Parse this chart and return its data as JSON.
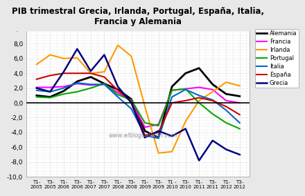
{
  "title": "PIB trimestral Grecia, Irlanda, Portugal, España, Italia,\nFrancia y Alemania",
  "watermark": "www.elblogsalmon.com",
  "ylim": [
    -10.0,
    10.0
  ],
  "yticks": [
    -10,
    -8,
    -6,
    -4,
    -2,
    0,
    2,
    4,
    6,
    8,
    10
  ],
  "x_labels": [
    "T1-\n2005",
    "T3-\n2005",
    "T1-\n2006",
    "T3-\n2006",
    "T1-\n2007",
    "T3-\n2007",
    "T1-\n2008",
    "T3-\n2008",
    "T1-\n2009",
    "T3-\n2009",
    "T1 -\n2010",
    "T3-\n2010",
    "T1-\n2011",
    "T3-\n2011",
    "T1-\n2012",
    "T3-\n2012"
  ],
  "series": {
    "Alemania": {
      "color": "#000000",
      "linewidth": 2.0,
      "data": [
        1.0,
        0.8,
        1.6,
        2.9,
        3.5,
        2.6,
        1.8,
        0.5,
        -3.8,
        -4.7,
        2.2,
        4.0,
        4.7,
        2.5,
        1.2,
        0.9
      ]
    },
    "Francia": {
      "color": "#FF00FF",
      "linewidth": 1.5,
      "data": [
        2.1,
        2.1,
        2.2,
        2.6,
        2.4,
        2.5,
        1.4,
        0.2,
        -3.3,
        -2.9,
        1.7,
        1.9,
        2.1,
        1.8,
        0.3,
        0.0
      ]
    },
    "Irlanda": {
      "color": "#FF9900",
      "linewidth": 1.5,
      "data": [
        5.2,
        6.5,
        6.0,
        6.1,
        4.0,
        4.2,
        7.8,
        6.3,
        -0.5,
        -6.8,
        -6.6,
        -2.5,
        0.3,
        1.5,
        2.8,
        2.3
      ]
    },
    "Portugal": {
      "color": "#00AA00",
      "linewidth": 1.5,
      "data": [
        0.8,
        0.7,
        1.2,
        1.5,
        2.0,
        2.6,
        1.1,
        0.4,
        -2.7,
        -3.1,
        1.7,
        1.9,
        0.0,
        -1.5,
        -2.7,
        -3.5
      ]
    },
    "Italia": {
      "color": "#0066CC",
      "linewidth": 1.5,
      "data": [
        1.7,
        1.5,
        2.0,
        2.7,
        2.5,
        2.5,
        0.8,
        -0.8,
        -4.4,
        -4.8,
        0.8,
        1.8,
        1.0,
        0.4,
        -1.0,
        -2.7
      ]
    },
    "España": {
      "color": "#CC0000",
      "linewidth": 1.5,
      "data": [
        3.2,
        3.7,
        4.0,
        4.0,
        4.0,
        3.5,
        1.7,
        0.2,
        -4.4,
        -4.0,
        0.0,
        0.3,
        0.7,
        0.3,
        -0.5,
        -1.6
      ]
    },
    "Grecia": {
      "color": "#000080",
      "linewidth": 1.8,
      "data": [
        2.0,
        1.5,
        4.2,
        7.3,
        4.3,
        6.5,
        2.2,
        0.0,
        -4.7,
        -3.8,
        -4.5,
        -3.5,
        -7.8,
        -5.1,
        -6.3,
        -7.0
      ]
    }
  },
  "background_color": "#ffffff",
  "grid_color": "#dddddd",
  "fig_bg": "#e8e8e8"
}
